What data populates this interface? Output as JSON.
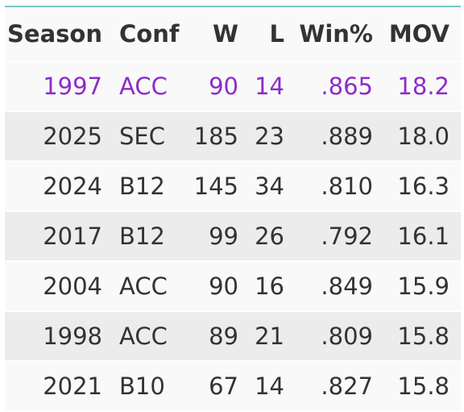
{
  "table": {
    "columns": [
      "Season",
      "Conf",
      "W",
      "L",
      "Win%",
      "MOV"
    ],
    "highlight_row": 0,
    "rows": [
      [
        "1997",
        "ACC",
        "90",
        "14",
        ".865",
        "18.2"
      ],
      [
        "2025",
        "SEC",
        "185",
        "23",
        ".889",
        "18.0"
      ],
      [
        "2024",
        "B12",
        "145",
        "34",
        ".810",
        "16.3"
      ],
      [
        "2017",
        "B12",
        "99",
        "26",
        ".792",
        "16.1"
      ],
      [
        "2004",
        "ACC",
        "90",
        "16",
        ".849",
        "15.9"
      ],
      [
        "1998",
        "ACC",
        "89",
        "21",
        ".809",
        "15.8"
      ],
      [
        "2021",
        "B10",
        "67",
        "14",
        ".827",
        "15.8"
      ]
    ]
  }
}
